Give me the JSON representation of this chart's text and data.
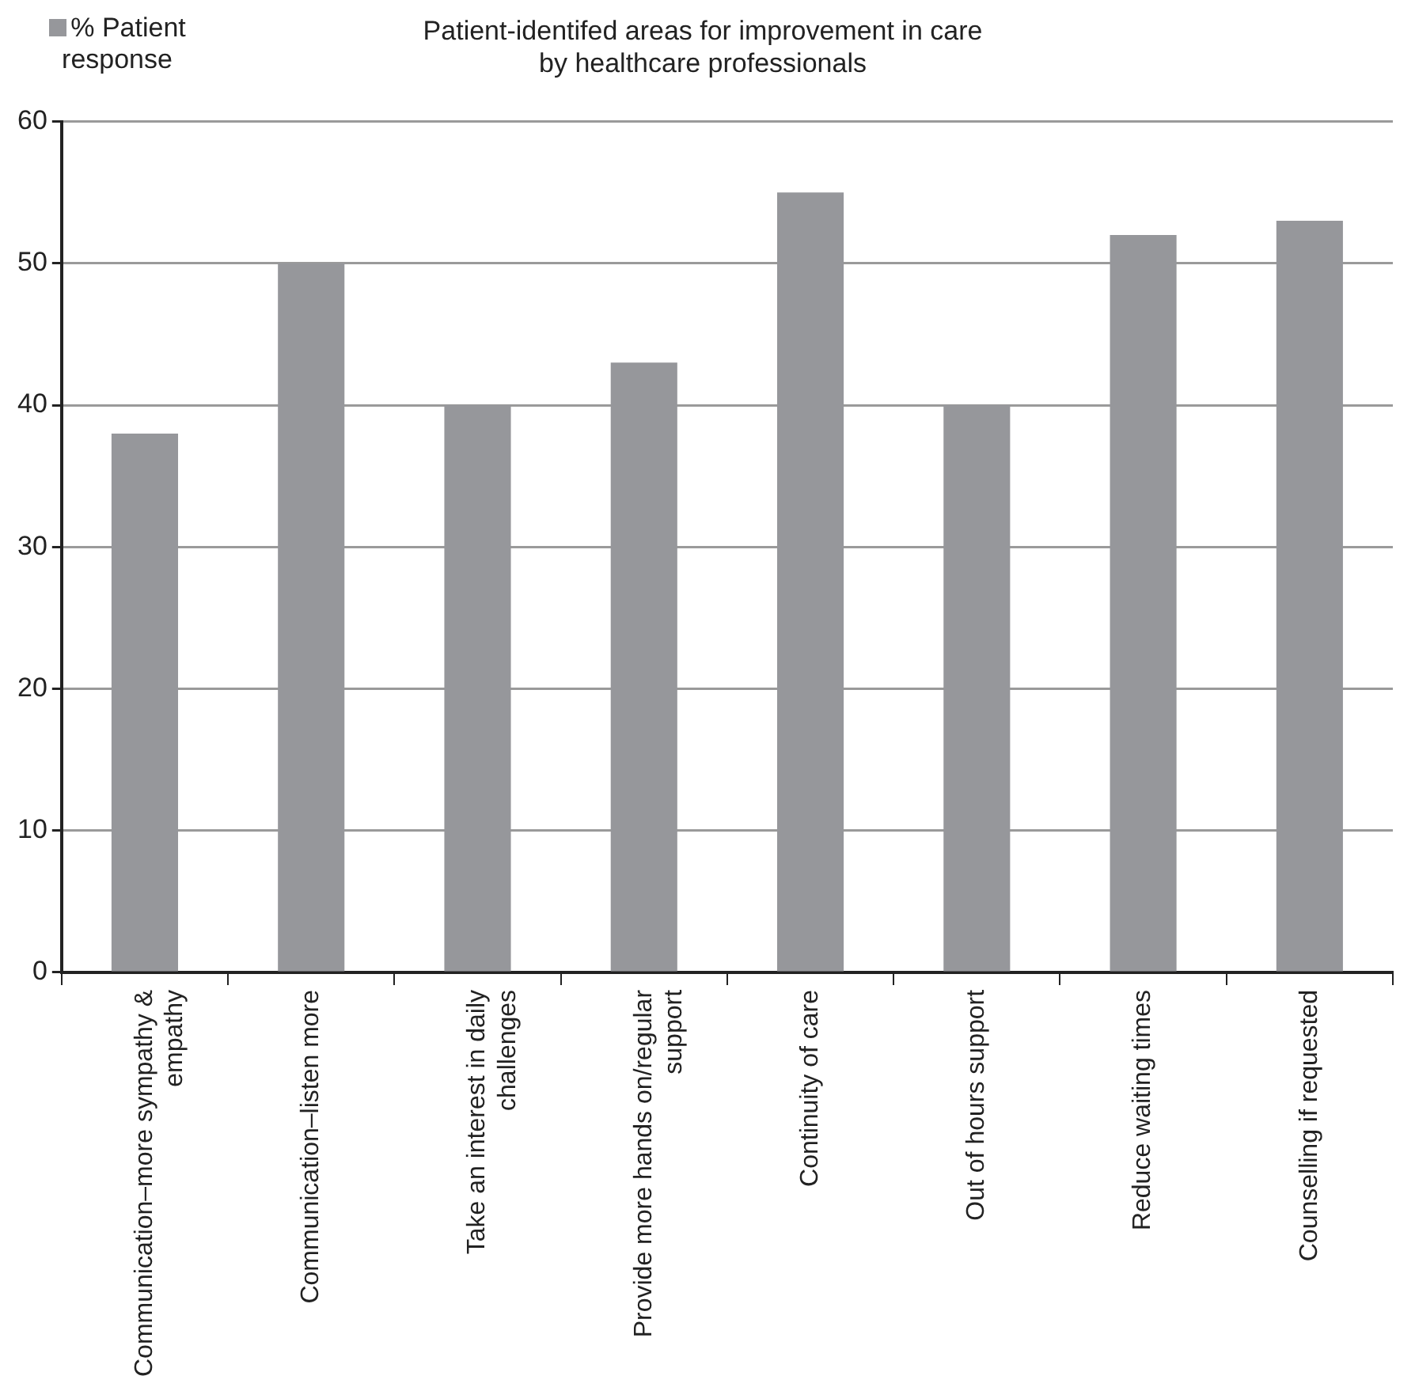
{
  "chart_data": {
    "type": "bar",
    "title": "Patient-identifed areas for improvement in care\nby healthcare professionals",
    "categories": [
      "Communication–more sympathy & empathy",
      "Communication–listen more",
      "Take an interest in daily challenges",
      "Provide more hands on/regular support",
      "Continuity of care",
      "Out of hours support",
      "Reduce waiting times",
      "Counselling if requested"
    ],
    "series": [
      {
        "name": "% Patient response",
        "color": "#96979b",
        "values": [
          38,
          50,
          40,
          43,
          55,
          40,
          52,
          53
        ]
      }
    ],
    "ylim": [
      0,
      60
    ],
    "yticks": [
      0,
      10,
      20,
      30,
      40,
      50,
      60
    ],
    "grid": "y",
    "legend": "top left"
  }
}
